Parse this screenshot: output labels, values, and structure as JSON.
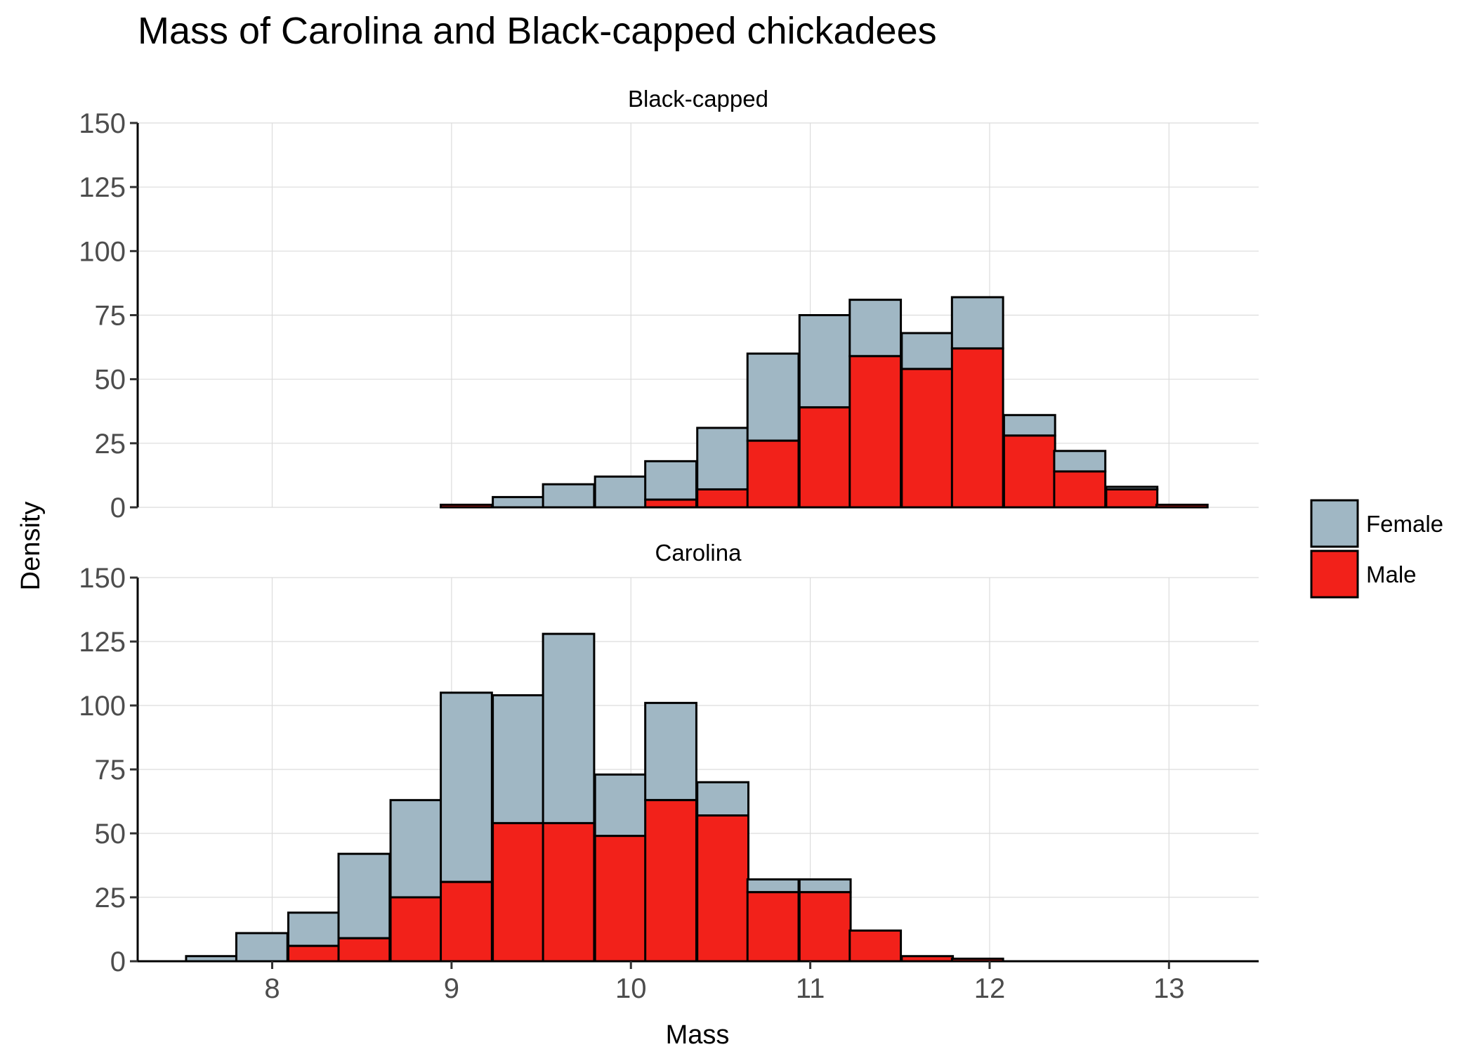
{
  "chart_data": {
    "type": "bar",
    "stacked": true,
    "title": "Mass of Carolina and Black-capped chickadees",
    "xlabel": "Mass",
    "ylabel": "Density",
    "xlim": [
      7.25,
      13.5
    ],
    "ylim": [
      0,
      150
    ],
    "x_ticks": [
      8,
      9,
      10,
      11,
      12,
      13
    ],
    "y_ticks": [
      0,
      25,
      50,
      75,
      100,
      125,
      150
    ],
    "bin_width": 0.285,
    "grid": true,
    "legend": {
      "placement": "right",
      "entries": [
        {
          "name": "Female",
          "color": "#a0b7c4"
        },
        {
          "name": "Male",
          "color": "#f2211a"
        }
      ]
    },
    "colors": {
      "Female": "#a0b7c4",
      "Male": "#f2211a",
      "outline": "#000000"
    },
    "panels": [
      {
        "strip": "Black-capped",
        "bin_starts": [
          7.52,
          7.8,
          8.09,
          8.37,
          8.66,
          8.94,
          9.23,
          9.51,
          9.8,
          10.08,
          10.37,
          10.65,
          10.94,
          11.22,
          11.51,
          11.79,
          12.08,
          12.36,
          12.65,
          12.93
        ],
        "series": [
          {
            "name": "Male",
            "values": [
              0,
              0,
              0,
              0,
              0,
              1,
              0,
              0,
              0,
              3,
              7,
              26,
              39,
              59,
              54,
              62,
              28,
              14,
              7,
              1
            ]
          },
          {
            "name": "Female",
            "values": [
              0,
              0,
              0,
              0,
              0,
              0,
              4,
              9,
              12,
              15,
              24,
              34,
              36,
              22,
              14,
              20,
              8,
              8,
              1,
              0
            ]
          }
        ]
      },
      {
        "strip": "Carolina",
        "bin_starts": [
          7.52,
          7.8,
          8.09,
          8.37,
          8.66,
          8.94,
          9.23,
          9.51,
          9.8,
          10.08,
          10.37,
          10.65,
          10.94,
          11.22,
          11.51,
          11.79,
          12.08,
          12.36,
          12.65,
          12.93
        ],
        "series": [
          {
            "name": "Male",
            "values": [
              0,
              0,
              6,
              9,
              25,
              31,
              54,
              54,
              49,
              63,
              57,
              27,
              27,
              12,
              2,
              1,
              0,
              0,
              0,
              0
            ]
          },
          {
            "name": "Female",
            "values": [
              2,
              11,
              13,
              33,
              38,
              74,
              50,
              74,
              24,
              38,
              13,
              5,
              5,
              0,
              0,
              0,
              0,
              0,
              0,
              0
            ]
          }
        ]
      }
    ]
  }
}
